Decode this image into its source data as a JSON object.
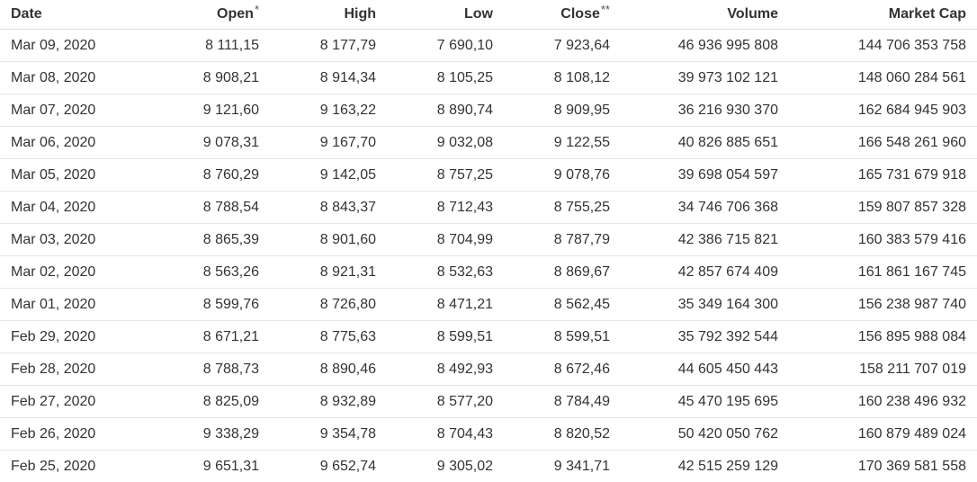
{
  "table": {
    "headers": {
      "date": "Date",
      "open": "Open",
      "open_mark": "*",
      "high": "High",
      "low": "Low",
      "close": "Close",
      "close_mark": "**",
      "volume": "Volume",
      "market_cap": "Market Cap"
    },
    "rows": [
      {
        "date": "Mar 09, 2020",
        "open": "8 111,15",
        "high": "8 177,79",
        "low": "7 690,10",
        "close": "7 923,64",
        "volume": "46 936 995 808",
        "market_cap": "144 706 353 758"
      },
      {
        "date": "Mar 08, 2020",
        "open": "8 908,21",
        "high": "8 914,34",
        "low": "8 105,25",
        "close": "8 108,12",
        "volume": "39 973 102 121",
        "market_cap": "148 060 284 561"
      },
      {
        "date": "Mar 07, 2020",
        "open": "9 121,60",
        "high": "9 163,22",
        "low": "8 890,74",
        "close": "8 909,95",
        "volume": "36 216 930 370",
        "market_cap": "162 684 945 903"
      },
      {
        "date": "Mar 06, 2020",
        "open": "9 078,31",
        "high": "9 167,70",
        "low": "9 032,08",
        "close": "9 122,55",
        "volume": "40 826 885 651",
        "market_cap": "166 548 261 960"
      },
      {
        "date": "Mar 05, 2020",
        "open": "8 760,29",
        "high": "9 142,05",
        "low": "8 757,25",
        "close": "9 078,76",
        "volume": "39 698 054 597",
        "market_cap": "165 731 679 918"
      },
      {
        "date": "Mar 04, 2020",
        "open": "8 788,54",
        "high": "8 843,37",
        "low": "8 712,43",
        "close": "8 755,25",
        "volume": "34 746 706 368",
        "market_cap": "159 807 857 328"
      },
      {
        "date": "Mar 03, 2020",
        "open": "8 865,39",
        "high": "8 901,60",
        "low": "8 704,99",
        "close": "8 787,79",
        "volume": "42 386 715 821",
        "market_cap": "160 383 579 416"
      },
      {
        "date": "Mar 02, 2020",
        "open": "8 563,26",
        "high": "8 921,31",
        "low": "8 532,63",
        "close": "8 869,67",
        "volume": "42 857 674 409",
        "market_cap": "161 861 167 745"
      },
      {
        "date": "Mar 01, 2020",
        "open": "8 599,76",
        "high": "8 726,80",
        "low": "8 471,21",
        "close": "8 562,45",
        "volume": "35 349 164 300",
        "market_cap": "156 238 987 740"
      },
      {
        "date": "Feb 29, 2020",
        "open": "8 671,21",
        "high": "8 775,63",
        "low": "8 599,51",
        "close": "8 599,51",
        "volume": "35 792 392 544",
        "market_cap": "156 895 988 084"
      },
      {
        "date": "Feb 28, 2020",
        "open": "8 788,73",
        "high": "8 890,46",
        "low": "8 492,93",
        "close": "8 672,46",
        "volume": "44 605 450 443",
        "market_cap": "158 211 707 019"
      },
      {
        "date": "Feb 27, 2020",
        "open": "8 825,09",
        "high": "8 932,89",
        "low": "8 577,20",
        "close": "8 784,49",
        "volume": "45 470 195 695",
        "market_cap": "160 238 496 932"
      },
      {
        "date": "Feb 26, 2020",
        "open": "9 338,29",
        "high": "9 354,78",
        "low": "8 704,43",
        "close": "8 820,52",
        "volume": "50 420 050 762",
        "market_cap": "160 879 489 024"
      },
      {
        "date": "Feb 25, 2020",
        "open": "9 651,31",
        "high": "9 652,74",
        "low": "9 305,02",
        "close": "9 341,71",
        "volume": "42 515 259 129",
        "market_cap": "170 369 581 558"
      }
    ]
  }
}
